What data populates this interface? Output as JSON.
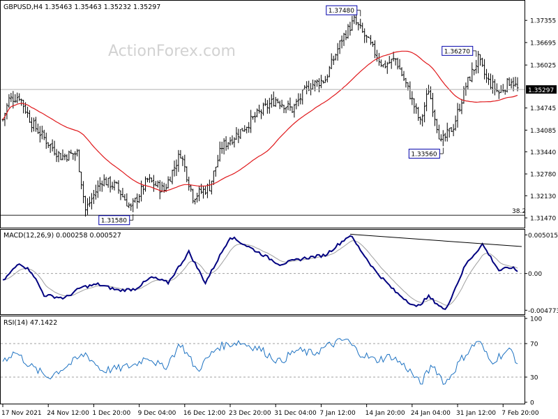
{
  "chart_data": [
    {
      "type": "candlestick",
      "title": "GBPUSD,H4  1.35463 1.35463 1.35232 1.35297",
      "watermark": "ActionForex.com",
      "ylim": [
        1.312,
        1.379
      ],
      "y_ticks": [
        "1.37355",
        "1.36695",
        "1.36025",
        "1.35297",
        "1.34745",
        "1.34085",
        "1.33440",
        "1.32780",
        "1.32130",
        "1.31470"
      ],
      "y_tick_values": [
        1.37355,
        1.36695,
        1.36025,
        1.35297,
        1.34745,
        1.34085,
        1.3344,
        1.3278,
        1.3213,
        1.3147
      ],
      "current_price": 1.35297,
      "current_price_label": "1.35297",
      "x_tick_labels": [
        "17 Nov 2021",
        "24 Nov 12:00",
        "1 Dec 20:00",
        "9 Dec 04:00",
        "16 Dec 12:00",
        "23 Dec 20:00",
        "31 Dec 04:00",
        "7 Jan 12:00",
        "14 Jan 20:00",
        "24 Jan 04:00",
        "31 Jan 12:00",
        "7 Feb 20:00"
      ],
      "x_tick_bar_index": [
        0,
        22,
        44,
        66,
        88,
        110,
        132,
        154,
        176,
        198,
        220,
        242
      ],
      "bar_count": 250,
      "anchors": [
        {
          "i": 0,
          "p": 1.344
        },
        {
          "i": 3,
          "p": 1.35
        },
        {
          "i": 8,
          "p": 1.351
        },
        {
          "i": 14,
          "p": 1.343
        },
        {
          "i": 22,
          "p": 1.337
        },
        {
          "i": 28,
          "p": 1.333
        },
        {
          "i": 36,
          "p": 1.334
        },
        {
          "i": 40,
          "p": 1.317
        },
        {
          "i": 48,
          "p": 1.326
        },
        {
          "i": 55,
          "p": 1.324
        },
        {
          "i": 62,
          "p": 1.3175
        },
        {
          "i": 70,
          "p": 1.326
        },
        {
          "i": 78,
          "p": 1.323
        },
        {
          "i": 86,
          "p": 1.334
        },
        {
          "i": 92,
          "p": 1.321
        },
        {
          "i": 100,
          "p": 1.324
        },
        {
          "i": 106,
          "p": 1.336
        },
        {
          "i": 114,
          "p": 1.34
        },
        {
          "i": 124,
          "p": 1.346
        },
        {
          "i": 132,
          "p": 1.35
        },
        {
          "i": 140,
          "p": 1.347
        },
        {
          "i": 148,
          "p": 1.354
        },
        {
          "i": 156,
          "p": 1.356
        },
        {
          "i": 164,
          "p": 1.368
        },
        {
          "i": 170,
          "p": 1.3735
        },
        {
          "i": 176,
          "p": 1.368
        },
        {
          "i": 184,
          "p": 1.36
        },
        {
          "i": 190,
          "p": 1.362
        },
        {
          "i": 196,
          "p": 1.353
        },
        {
          "i": 202,
          "p": 1.343
        },
        {
          "i": 206,
          "p": 1.353
        },
        {
          "i": 212,
          "p": 1.337
        },
        {
          "i": 218,
          "p": 1.342
        },
        {
          "i": 224,
          "p": 1.354
        },
        {
          "i": 230,
          "p": 1.362
        },
        {
          "i": 234,
          "p": 1.356
        },
        {
          "i": 240,
          "p": 1.352
        },
        {
          "i": 246,
          "p": 1.356
        },
        {
          "i": 249,
          "p": 1.353
        }
      ],
      "labels": [
        {
          "text": "1.37480",
          "bar": 172,
          "price": 1.3748,
          "side": "left",
          "pos": "above"
        },
        {
          "text": "1.36270",
          "bar": 228,
          "price": 1.3627,
          "side": "left",
          "pos": "above"
        },
        {
          "text": "1.33560",
          "bar": 212,
          "price": 1.3356,
          "side": "left",
          "pos": "below"
        },
        {
          "text": "1.31580",
          "bar": 62,
          "price": 1.3158,
          "side": "left",
          "pos": "below"
        }
      ],
      "fib_level_label": "38.2",
      "fib_level_price": 1.3155,
      "colors": {
        "candle": "#000000",
        "ma": "#e0191c",
        "current_line": "#b0b0b0",
        "label_border": "#0000aa"
      }
    },
    {
      "type": "line",
      "title": "MACD(12,26,9) 0.000258 0.000527",
      "y_ticks": [
        "0.005015",
        "0.00",
        "-0.004773"
      ],
      "ylim": [
        -0.0052,
        0.0055
      ],
      "macd_anchors": [
        {
          "i": 0,
          "v": -0.001
        },
        {
          "i": 8,
          "v": 0.0014
        },
        {
          "i": 14,
          "v": 0.0002
        },
        {
          "i": 20,
          "v": -0.0028
        },
        {
          "i": 30,
          "v": -0.0032
        },
        {
          "i": 38,
          "v": -0.0018
        },
        {
          "i": 46,
          "v": -0.0014
        },
        {
          "i": 56,
          "v": -0.0022
        },
        {
          "i": 64,
          "v": -0.002
        },
        {
          "i": 72,
          "v": -0.0005
        },
        {
          "i": 80,
          "v": -0.0012
        },
        {
          "i": 90,
          "v": 0.0028
        },
        {
          "i": 98,
          "v": -0.0012
        },
        {
          "i": 110,
          "v": 0.0048
        },
        {
          "i": 122,
          "v": 0.003
        },
        {
          "i": 134,
          "v": 0.0012
        },
        {
          "i": 146,
          "v": 0.002
        },
        {
          "i": 156,
          "v": 0.0024
        },
        {
          "i": 168,
          "v": 0.005
        },
        {
          "i": 180,
          "v": 0.0004
        },
        {
          "i": 190,
          "v": -0.0024
        },
        {
          "i": 200,
          "v": -0.0044
        },
        {
          "i": 206,
          "v": -0.003
        },
        {
          "i": 214,
          "v": -0.0048
        },
        {
          "i": 224,
          "v": 0.0012
        },
        {
          "i": 232,
          "v": 0.0038
        },
        {
          "i": 240,
          "v": 0.0004
        },
        {
          "i": 246,
          "v": 0.0008
        },
        {
          "i": 249,
          "v": 0.0003
        }
      ],
      "trendline": {
        "from": {
          "bar": 168,
          "v": 0.0051
        },
        "to": {
          "bar": 251,
          "v": 0.0035
        }
      },
      "colors": {
        "macd": "#000080",
        "signal": "#a0a0a0",
        "zero": "#a0a0a0",
        "trendline": "#000000"
      }
    },
    {
      "type": "line",
      "title": "RSI(14) 47.1422",
      "y_ticks": [
        "100",
        "70",
        "30",
        "0"
      ],
      "ylim": [
        0,
        100
      ],
      "levels": [
        70,
        30
      ],
      "rsi_anchors": [
        {
          "i": 0,
          "v": 50
        },
        {
          "i": 6,
          "v": 60
        },
        {
          "i": 14,
          "v": 42
        },
        {
          "i": 22,
          "v": 30
        },
        {
          "i": 32,
          "v": 45
        },
        {
          "i": 40,
          "v": 58
        },
        {
          "i": 48,
          "v": 38
        },
        {
          "i": 56,
          "v": 40
        },
        {
          "i": 64,
          "v": 45
        },
        {
          "i": 70,
          "v": 55
        },
        {
          "i": 78,
          "v": 40
        },
        {
          "i": 86,
          "v": 70
        },
        {
          "i": 94,
          "v": 38
        },
        {
          "i": 104,
          "v": 66
        },
        {
          "i": 114,
          "v": 72
        },
        {
          "i": 124,
          "v": 64
        },
        {
          "i": 134,
          "v": 48
        },
        {
          "i": 142,
          "v": 62
        },
        {
          "i": 150,
          "v": 58
        },
        {
          "i": 158,
          "v": 68
        },
        {
          "i": 166,
          "v": 75
        },
        {
          "i": 172,
          "v": 60
        },
        {
          "i": 180,
          "v": 50
        },
        {
          "i": 188,
          "v": 55
        },
        {
          "i": 196,
          "v": 40
        },
        {
          "i": 202,
          "v": 22
        },
        {
          "i": 208,
          "v": 45
        },
        {
          "i": 214,
          "v": 22
        },
        {
          "i": 222,
          "v": 52
        },
        {
          "i": 230,
          "v": 74
        },
        {
          "i": 236,
          "v": 48
        },
        {
          "i": 242,
          "v": 58
        },
        {
          "i": 246,
          "v": 62
        },
        {
          "i": 249,
          "v": 47
        }
      ],
      "colors": {
        "rsi": "#1d72c2",
        "level": "#a0a0a0"
      }
    }
  ]
}
